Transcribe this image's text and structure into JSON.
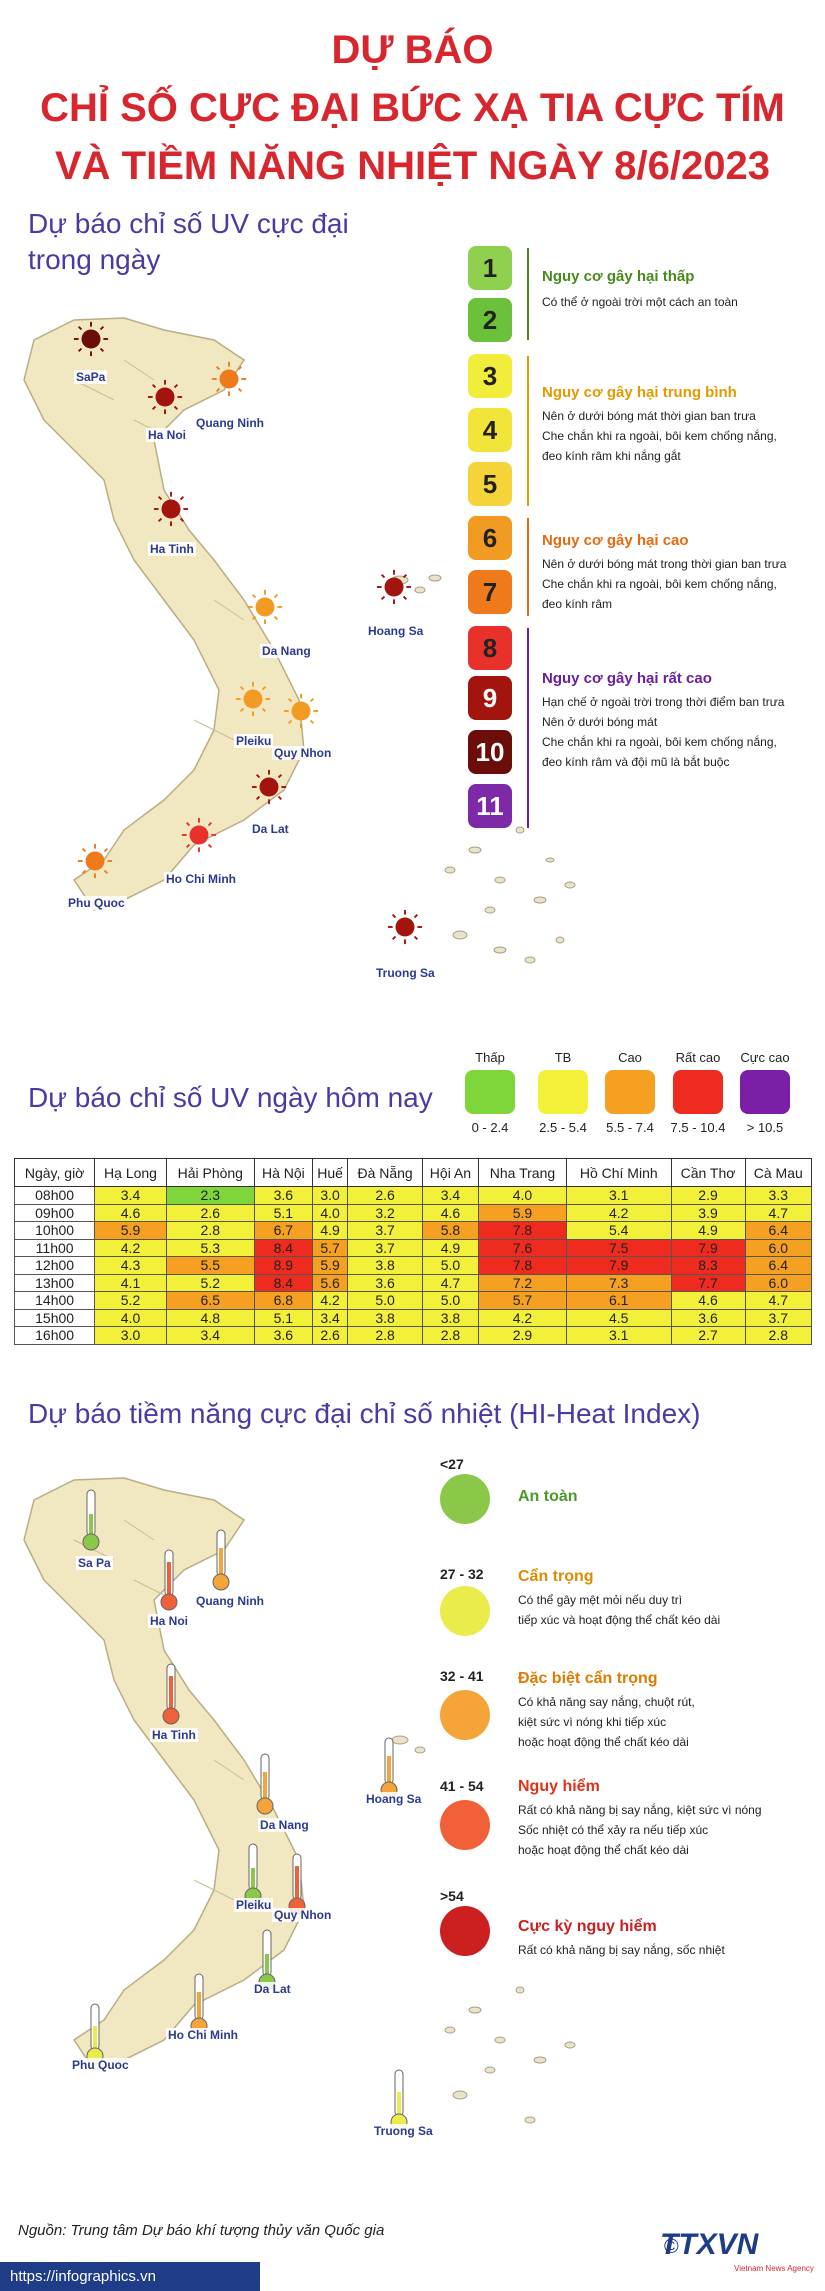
{
  "title": {
    "line1": "DỰ BÁO",
    "line2": "CHỈ SỐ CỰC ĐẠI BỨC XẠ TIA CỰC TÍM",
    "line3": "VÀ TIỀM NĂNG NHIỆT NGÀY 8/6/2023"
  },
  "uv_map": {
    "heading_line1": "Dự báo chỉ số UV cực đại",
    "heading_line2": "trong ngày",
    "cities": [
      "SaPa",
      "Ha Noi",
      "Quang Ninh",
      "Ha Tinh",
      "Da Nang",
      "Pleiku",
      "Quy Nhon",
      "Da Lat",
      "Ho Chi Minh",
      "Phu Quoc",
      "Hoang Sa",
      "Truong Sa"
    ]
  },
  "uv_legend": {
    "levels": [
      "1",
      "2",
      "3",
      "4",
      "5",
      "6",
      "7",
      "8",
      "9",
      "10",
      "11"
    ],
    "colors": [
      "#8fd14f",
      "#6cc13a",
      "#f2ec3a",
      "#f2e53a",
      "#f5d43a",
      "#f29b22",
      "#ef7a1c",
      "#e8312a",
      "#a3140f",
      "#6b0d08",
      "#7d2aa8"
    ],
    "groups": [
      {
        "title": "Nguy cơ gây hại thấp",
        "color": "#4a8a1c",
        "desc": [
          "Có thể ở ngoài trời một cách an toàn"
        ]
      },
      {
        "title": "Nguy cơ gây hại trung bình",
        "color": "#e39a00",
        "desc": [
          "Nên ở dưới bóng mát thời gian ban trưa",
          "Che chắn khi ra ngoài, bôi kem chống nắng,",
          "đeo kính râm khi nắng gắt"
        ]
      },
      {
        "title": "Nguy cơ gây hại cao",
        "color": "#e56a12",
        "desc": [
          "Nên ở dưới bóng mát trong thời gian ban trưa",
          "Che chắn khi ra ngoài, bôi kem chống nắng,",
          "đeo kính râm"
        ]
      },
      {
        "title": "Nguy cơ gây hại rất cao",
        "color": "#6a1fa0",
        "desc": [
          "Hạn chế ở ngoài trời trong thời điểm ban trưa",
          "Nên ở dưới bóng mát",
          "Che chắn khi ra ngoài, bôi kem chống nắng,",
          "đeo kính râm và đội mũ là bắt buộc"
        ]
      }
    ]
  },
  "uv_today": {
    "heading": "Dự báo chỉ số UV ngày hôm nay",
    "scale": [
      {
        "label": "Thấp",
        "range": "0 - 2.4",
        "color": "#7ed63a"
      },
      {
        "label": "TB",
        "range": "2.5 - 5.4",
        "color": "#f3f03a"
      },
      {
        "label": "Cao",
        "range": "5.5 - 7.4",
        "color": "#f5a021"
      },
      {
        "label": "Rất cao",
        "range": "7.5 - 10.4",
        "color": "#ef2a1f"
      },
      {
        "label": "Cực cao",
        "range": "> 10.5",
        "color": "#7a1fa6"
      }
    ]
  },
  "table": {
    "headers": [
      "Ngày, giờ",
      "Hạ Long",
      "Hải Phòng",
      "Hà Nội",
      "Huế",
      "Đà Nẵng",
      "Hội An",
      "Nha Trang",
      "Hồ Chí Minh",
      "Cần Thơ",
      "Cà Mau"
    ],
    "rows": [
      [
        "08h00",
        "3.4",
        "2.3",
        "3.6",
        "3.0",
        "2.6",
        "3.4",
        "4.0",
        "3.1",
        "2.9",
        "3.3"
      ],
      [
        "09h00",
        "4.6",
        "2.6",
        "5.1",
        "4.0",
        "3.2",
        "4.6",
        "5.9",
        "4.2",
        "3.9",
        "4.7"
      ],
      [
        "10h00",
        "5.9",
        "2.8",
        "6.7",
        "4.9",
        "3.7",
        "5.8",
        "7.8",
        "5.4",
        "4.9",
        "6.4"
      ],
      [
        "11h00",
        "4.2",
        "5.3",
        "8.4",
        "5.7",
        "3.7",
        "4.9",
        "7.6",
        "7.5",
        "7.9",
        "6.0"
      ],
      [
        "12h00",
        "4.3",
        "5.5",
        "8.9",
        "5.9",
        "3.8",
        "5.0",
        "7.8",
        "7.9",
        "8.3",
        "6.4"
      ],
      [
        "13h00",
        "4.1",
        "5.2",
        "8.4",
        "5.6",
        "3.6",
        "4.7",
        "7.2",
        "7.3",
        "7.7",
        "6.0"
      ],
      [
        "14h00",
        "5.2",
        "6.5",
        "6.8",
        "4.2",
        "5.0",
        "5.0",
        "5.7",
        "6.1",
        "4.6",
        "4.7"
      ],
      [
        "15h00",
        "4.0",
        "4.8",
        "5.1",
        "3.4",
        "3.8",
        "3.8",
        "4.2",
        "4.5",
        "3.6",
        "3.7"
      ],
      [
        "16h00",
        "3.0",
        "3.4",
        "3.6",
        "2.6",
        "2.8",
        "2.8",
        "2.9",
        "3.1",
        "2.7",
        "2.8"
      ]
    ]
  },
  "heat": {
    "heading": "Dự báo tiềm năng cực đại chỉ số nhiệt (HI-Heat Index)",
    "cities": [
      "Sa Pa",
      "Ha Noi",
      "Quang Ninh",
      "Ha Tinh",
      "Da Nang",
      "Hoang Sa",
      "Pleiku",
      "Quy Nhon",
      "Da Lat",
      "Ho Chi Minh",
      "Phu Quoc",
      "Truong Sa"
    ],
    "levels": [
      {
        "range": "<27",
        "title": "An toàn",
        "color": "#8bc84a",
        "title_color": "#4a9a2a",
        "desc": []
      },
      {
        "range": "27 - 32",
        "title": "Cẩn trọng",
        "color": "#e9ec4a",
        "title_color": "#e08a00",
        "desc": [
          "Có thể gây mệt mỏi nếu duy trì",
          "tiếp xúc và hoạt động thể chất kéo dài"
        ]
      },
      {
        "range": "32 - 41",
        "title": "Đặc biệt cẩn trọng",
        "color": "#f5a43a",
        "title_color": "#e07a00",
        "desc": [
          "Có khả năng say nắng, chuột rút,",
          "kiệt sức vì nóng khi tiếp xúc",
          "hoặc hoạt động thể chất kéo dài"
        ]
      },
      {
        "range": "41 - 54",
        "title": "Nguy hiểm",
        "color": "#f0613a",
        "title_color": "#e0331a",
        "desc": [
          "Rất có khả năng bị say nắng, kiệt sức vì nóng",
          "Sốc nhiệt có thể xảy ra nếu tiếp xúc",
          "hoặc hoạt động thể chất kéo dài"
        ]
      },
      {
        "range": ">54",
        "title": "Cực kỳ nguy hiểm",
        "color": "#cc1f1f",
        "title_color": "#cc1f1f",
        "desc": [
          "Rất có khả năng bị say nắng, sốc nhiệt"
        ]
      }
    ]
  },
  "footer": {
    "source": "Nguồn: Trung tâm Dự báo khí tượng thủy văn Quốc gia",
    "url": "https://infographics.vn",
    "copyright": "©",
    "logo": "TTXVN",
    "logo_sub": "Vietnam News Agency"
  }
}
